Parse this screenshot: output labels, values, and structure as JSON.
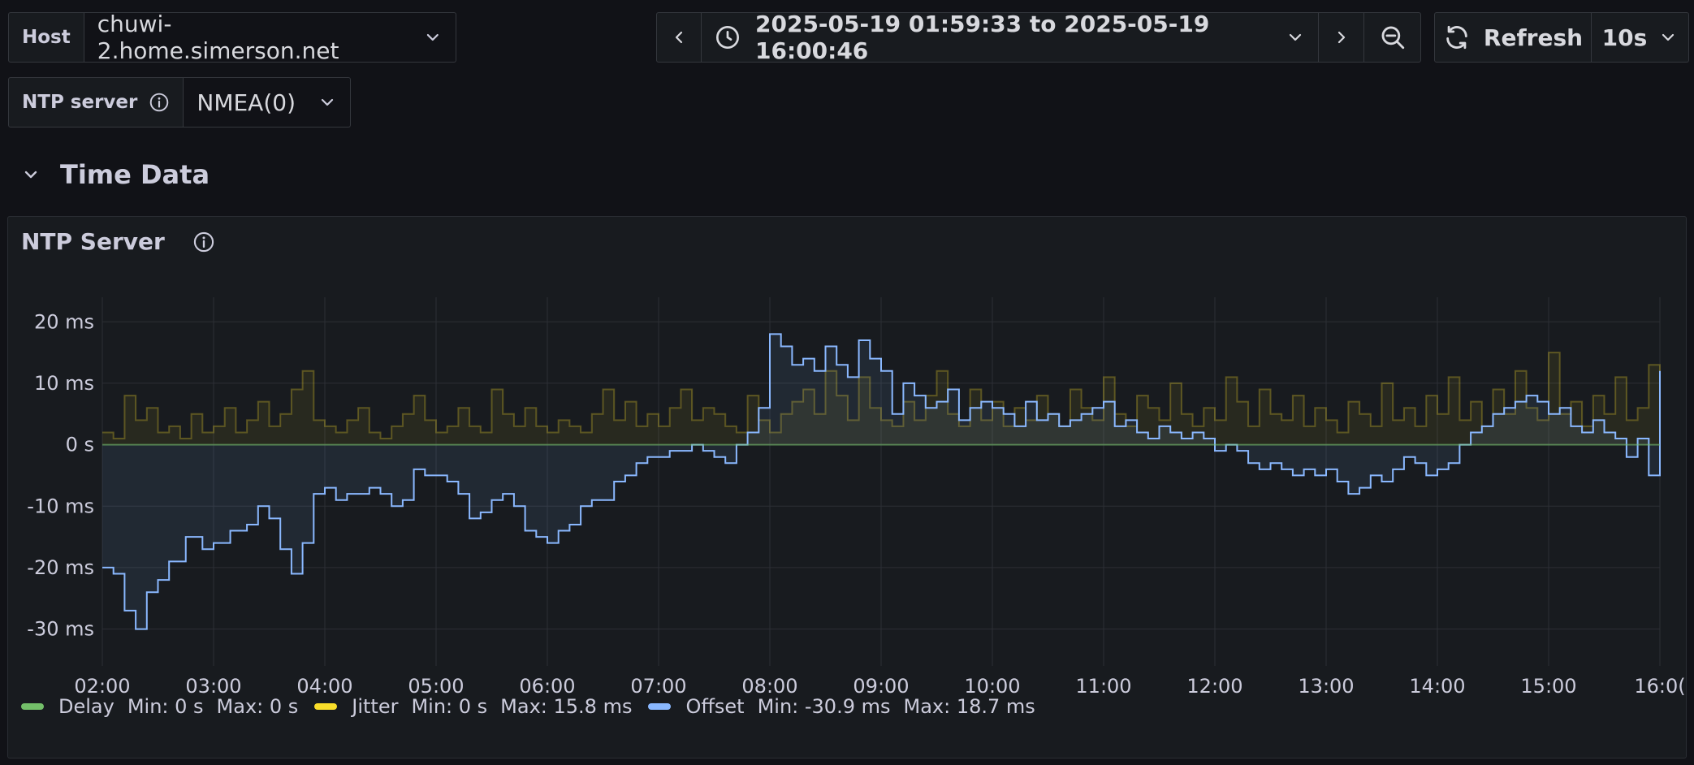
{
  "toolbar": {
    "host_label": "Host",
    "host_value": "chuwi-2.home.simerson.net",
    "time_range": "2025-05-19 01:59:33 to 2025-05-19 16:00:46",
    "refresh_label": "Refresh",
    "refresh_interval": "10s"
  },
  "ntp_selector": {
    "label": "NTP server",
    "value": "NMEA(0)"
  },
  "row": {
    "title": "Time Data"
  },
  "panel": {
    "title": "NTP Server"
  },
  "legend": [
    {
      "name": "Delay",
      "color": "#73bf69",
      "min": "Min: 0 s",
      "max": "Max: 0 s"
    },
    {
      "name": "Jitter",
      "color": "#fade2a",
      "min": "Min: 0 s",
      "max": "Max: 15.8 ms"
    },
    {
      "name": "Offset",
      "color": "#8ab8ff",
      "min": "Min: -30.9 ms",
      "max": "Max: 18.7 ms"
    }
  ],
  "chart_data": {
    "type": "line",
    "y_unit": "ms",
    "ylim": [
      -36,
      24
    ],
    "y_ticks": [
      "20 ms",
      "10 ms",
      "0 s",
      "-10 ms",
      "-20 ms",
      "-30 ms"
    ],
    "y_tick_values": [
      20,
      10,
      0,
      -10,
      -20,
      -30
    ],
    "x_ticks": [
      "02:00",
      "03:00",
      "04:00",
      "05:00",
      "06:00",
      "07:00",
      "08:00",
      "09:00",
      "10:00",
      "11:00",
      "12:00",
      "13:00",
      "14:00",
      "15:00",
      "16:0("
    ],
    "x_range_hours": [
      2.0,
      16.0
    ],
    "grid": true,
    "series": [
      {
        "name": "Offset",
        "color": "#8ab8ff",
        "points": [
          [
            2.0,
            -20
          ],
          [
            2.1,
            -21
          ],
          [
            2.2,
            -27
          ],
          [
            2.3,
            -30
          ],
          [
            2.4,
            -24
          ],
          [
            2.5,
            -22
          ],
          [
            2.6,
            -19
          ],
          [
            2.75,
            -15
          ],
          [
            2.9,
            -17
          ],
          [
            3.0,
            -16
          ],
          [
            3.15,
            -14
          ],
          [
            3.3,
            -13
          ],
          [
            3.4,
            -10
          ],
          [
            3.5,
            -12
          ],
          [
            3.6,
            -17
          ],
          [
            3.7,
            -21
          ],
          [
            3.8,
            -16
          ],
          [
            3.9,
            -8
          ],
          [
            4.0,
            -7
          ],
          [
            4.1,
            -9
          ],
          [
            4.2,
            -8
          ],
          [
            4.3,
            -8
          ],
          [
            4.4,
            -7
          ],
          [
            4.5,
            -8
          ],
          [
            4.6,
            -10
          ],
          [
            4.7,
            -9
          ],
          [
            4.8,
            -4
          ],
          [
            4.9,
            -5
          ],
          [
            5.0,
            -5
          ],
          [
            5.1,
            -6
          ],
          [
            5.2,
            -8
          ],
          [
            5.3,
            -12
          ],
          [
            5.4,
            -11
          ],
          [
            5.5,
            -9
          ],
          [
            5.6,
            -8
          ],
          [
            5.7,
            -10
          ],
          [
            5.8,
            -14
          ],
          [
            5.9,
            -15
          ],
          [
            6.0,
            -16
          ],
          [
            6.1,
            -14
          ],
          [
            6.2,
            -13
          ],
          [
            6.3,
            -10
          ],
          [
            6.4,
            -9
          ],
          [
            6.5,
            -9
          ],
          [
            6.6,
            -6
          ],
          [
            6.7,
            -5
          ],
          [
            6.8,
            -3
          ],
          [
            6.9,
            -2
          ],
          [
            7.0,
            -2
          ],
          [
            7.1,
            -1
          ],
          [
            7.2,
            -1
          ],
          [
            7.3,
            0
          ],
          [
            7.4,
            -1
          ],
          [
            7.5,
            -2
          ],
          [
            7.6,
            -3
          ],
          [
            7.7,
            0
          ],
          [
            7.8,
            2
          ],
          [
            7.9,
            6
          ],
          [
            8.0,
            18
          ],
          [
            8.1,
            16
          ],
          [
            8.2,
            13
          ],
          [
            8.3,
            14
          ],
          [
            8.4,
            12
          ],
          [
            8.5,
            16
          ],
          [
            8.6,
            13
          ],
          [
            8.7,
            11
          ],
          [
            8.8,
            17
          ],
          [
            8.9,
            14
          ],
          [
            9.0,
            12
          ],
          [
            9.1,
            5
          ],
          [
            9.2,
            10
          ],
          [
            9.3,
            8
          ],
          [
            9.4,
            6
          ],
          [
            9.5,
            7
          ],
          [
            9.6,
            9
          ],
          [
            9.7,
            4
          ],
          [
            9.8,
            6
          ],
          [
            9.9,
            7
          ],
          [
            10.0,
            6
          ],
          [
            10.1,
            5
          ],
          [
            10.2,
            3
          ],
          [
            10.3,
            7
          ],
          [
            10.4,
            4
          ],
          [
            10.5,
            5
          ],
          [
            10.6,
            3
          ],
          [
            10.7,
            4
          ],
          [
            10.8,
            5
          ],
          [
            10.9,
            6
          ],
          [
            11.0,
            7
          ],
          [
            11.1,
            3
          ],
          [
            11.2,
            4
          ],
          [
            11.3,
            2
          ],
          [
            11.4,
            1
          ],
          [
            11.5,
            3
          ],
          [
            11.6,
            2
          ],
          [
            11.7,
            1
          ],
          [
            11.8,
            2
          ],
          [
            11.9,
            1
          ],
          [
            12.0,
            -1
          ],
          [
            12.1,
            0
          ],
          [
            12.2,
            -1
          ],
          [
            12.3,
            -3
          ],
          [
            12.4,
            -4
          ],
          [
            12.5,
            -3
          ],
          [
            12.6,
            -4
          ],
          [
            12.7,
            -5
          ],
          [
            12.8,
            -4
          ],
          [
            12.9,
            -5
          ],
          [
            13.0,
            -4
          ],
          [
            13.1,
            -6
          ],
          [
            13.2,
            -8
          ],
          [
            13.3,
            -7
          ],
          [
            13.4,
            -5
          ],
          [
            13.5,
            -6
          ],
          [
            13.6,
            -4
          ],
          [
            13.7,
            -2
          ],
          [
            13.8,
            -3
          ],
          [
            13.9,
            -5
          ],
          [
            14.0,
            -4
          ],
          [
            14.1,
            -3
          ],
          [
            14.2,
            0
          ],
          [
            14.3,
            2
          ],
          [
            14.4,
            3
          ],
          [
            14.5,
            5
          ],
          [
            14.6,
            6
          ],
          [
            14.7,
            7
          ],
          [
            14.8,
            8
          ],
          [
            14.9,
            7
          ],
          [
            15.0,
            5
          ],
          [
            15.1,
            6
          ],
          [
            15.2,
            3
          ],
          [
            15.3,
            2
          ],
          [
            15.4,
            4
          ],
          [
            15.5,
            2
          ],
          [
            15.6,
            1
          ],
          [
            15.7,
            -2
          ],
          [
            15.8,
            1
          ],
          [
            15.9,
            -5
          ],
          [
            16.0,
            12
          ]
        ]
      },
      {
        "name": "Jitter",
        "color": "#fade2a",
        "points": [
          [
            2.0,
            2
          ],
          [
            2.1,
            1
          ],
          [
            2.2,
            8
          ],
          [
            2.3,
            4
          ],
          [
            2.4,
            6
          ],
          [
            2.5,
            2
          ],
          [
            2.6,
            3
          ],
          [
            2.7,
            1
          ],
          [
            2.8,
            5
          ],
          [
            2.9,
            2
          ],
          [
            3.0,
            3
          ],
          [
            3.1,
            6
          ],
          [
            3.2,
            2
          ],
          [
            3.3,
            4
          ],
          [
            3.4,
            7
          ],
          [
            3.5,
            3
          ],
          [
            3.6,
            5
          ],
          [
            3.7,
            9
          ],
          [
            3.8,
            12
          ],
          [
            3.9,
            4
          ],
          [
            4.0,
            3
          ],
          [
            4.1,
            2
          ],
          [
            4.2,
            4
          ],
          [
            4.3,
            6
          ],
          [
            4.4,
            2
          ],
          [
            4.5,
            1
          ],
          [
            4.6,
            3
          ],
          [
            4.7,
            5
          ],
          [
            4.8,
            8
          ],
          [
            4.9,
            4
          ],
          [
            5.0,
            2
          ],
          [
            5.1,
            3
          ],
          [
            5.2,
            6
          ],
          [
            5.3,
            3
          ],
          [
            5.4,
            2
          ],
          [
            5.5,
            9
          ],
          [
            5.6,
            5
          ],
          [
            5.7,
            3
          ],
          [
            5.8,
            6
          ],
          [
            5.9,
            3
          ],
          [
            6.0,
            2
          ],
          [
            6.1,
            4
          ],
          [
            6.2,
            3
          ],
          [
            6.3,
            2
          ],
          [
            6.4,
            5
          ],
          [
            6.5,
            9
          ],
          [
            6.6,
            4
          ],
          [
            6.7,
            7
          ],
          [
            6.8,
            3
          ],
          [
            6.9,
            5
          ],
          [
            7.0,
            3
          ],
          [
            7.1,
            6
          ],
          [
            7.2,
            9
          ],
          [
            7.3,
            4
          ],
          [
            7.4,
            6
          ],
          [
            7.5,
            5
          ],
          [
            7.6,
            3
          ],
          [
            7.7,
            2
          ],
          [
            7.8,
            8
          ],
          [
            7.9,
            4
          ],
          [
            8.0,
            2
          ],
          [
            8.1,
            5
          ],
          [
            8.2,
            7
          ],
          [
            8.3,
            9
          ],
          [
            8.4,
            5
          ],
          [
            8.5,
            12
          ],
          [
            8.6,
            8
          ],
          [
            8.7,
            4
          ],
          [
            8.8,
            11
          ],
          [
            8.9,
            6
          ],
          [
            9.0,
            4
          ],
          [
            9.1,
            3
          ],
          [
            9.2,
            7
          ],
          [
            9.3,
            4
          ],
          [
            9.4,
            8
          ],
          [
            9.5,
            12
          ],
          [
            9.6,
            5
          ],
          [
            9.7,
            3
          ],
          [
            9.8,
            9
          ],
          [
            9.9,
            4
          ],
          [
            10.0,
            7
          ],
          [
            10.1,
            3
          ],
          [
            10.2,
            6
          ],
          [
            10.3,
            4
          ],
          [
            10.4,
            8
          ],
          [
            10.5,
            5
          ],
          [
            10.6,
            3
          ],
          [
            10.7,
            9
          ],
          [
            10.8,
            6
          ],
          [
            10.9,
            4
          ],
          [
            11.0,
            11
          ],
          [
            11.1,
            5
          ],
          [
            11.2,
            3
          ],
          [
            11.3,
            8
          ],
          [
            11.4,
            6
          ],
          [
            11.5,
            4
          ],
          [
            11.6,
            10
          ],
          [
            11.7,
            5
          ],
          [
            11.8,
            3
          ],
          [
            11.9,
            6
          ],
          [
            12.0,
            4
          ],
          [
            12.1,
            11
          ],
          [
            12.2,
            7
          ],
          [
            12.3,
            3
          ],
          [
            12.4,
            9
          ],
          [
            12.5,
            5
          ],
          [
            12.6,
            4
          ],
          [
            12.7,
            8
          ],
          [
            12.8,
            3
          ],
          [
            12.9,
            6
          ],
          [
            13.0,
            4
          ],
          [
            13.1,
            2
          ],
          [
            13.2,
            7
          ],
          [
            13.3,
            5
          ],
          [
            13.4,
            3
          ],
          [
            13.5,
            10
          ],
          [
            13.6,
            4
          ],
          [
            13.7,
            6
          ],
          [
            13.8,
            3
          ],
          [
            13.9,
            8
          ],
          [
            14.0,
            5
          ],
          [
            14.1,
            11
          ],
          [
            14.2,
            4
          ],
          [
            14.3,
            7
          ],
          [
            14.4,
            3
          ],
          [
            14.5,
            9
          ],
          [
            14.6,
            5
          ],
          [
            14.7,
            12
          ],
          [
            14.8,
            6
          ],
          [
            14.9,
            4
          ],
          [
            15.0,
            15
          ],
          [
            15.1,
            5
          ],
          [
            15.2,
            7
          ],
          [
            15.3,
            3
          ],
          [
            15.4,
            8
          ],
          [
            15.5,
            5
          ],
          [
            15.6,
            11
          ],
          [
            15.7,
            4
          ],
          [
            15.8,
            6
          ],
          [
            15.9,
            13
          ],
          [
            16.0,
            3
          ]
        ]
      },
      {
        "name": "Delay",
        "color": "#73bf69",
        "points": [
          [
            2.0,
            0
          ],
          [
            16.0,
            0
          ]
        ]
      }
    ]
  }
}
